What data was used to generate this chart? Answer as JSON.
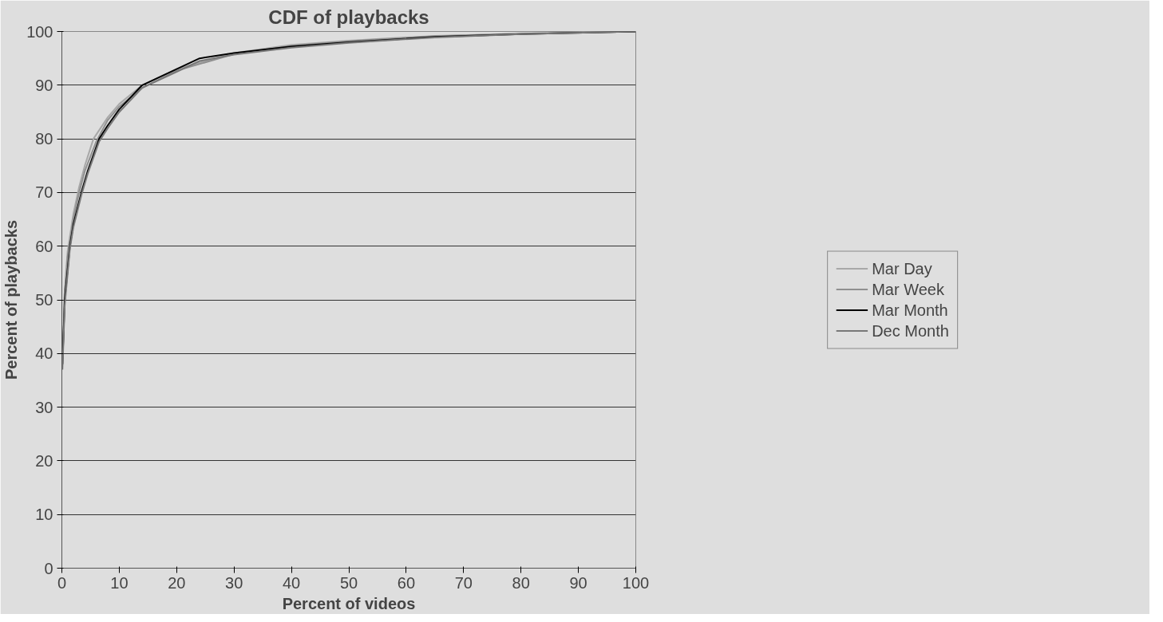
{
  "chart_data": {
    "type": "line",
    "title": "CDF of playbacks",
    "xlabel": "Percent of videos",
    "ylabel": "Percent of playbacks",
    "xlim": [
      0,
      100
    ],
    "xticks": [
      0,
      10,
      20,
      30,
      40,
      50,
      60,
      70,
      80,
      90,
      100
    ],
    "ylim": [
      0,
      100
    ],
    "yticks": [
      0,
      10,
      20,
      30,
      40,
      50,
      60,
      70,
      80,
      90,
      100
    ],
    "grid": "y",
    "legend": "right",
    "marker": "none",
    "line_style": "solid",
    "series": [
      {
        "name": "Mar Day",
        "color": "#a8a8a8",
        "x": [
          0.1,
          0.5,
          1,
          2,
          3,
          4,
          5.5,
          8,
          10,
          14,
          20,
          30,
          40,
          50,
          65,
          80,
          100
        ],
        "values": [
          38,
          52,
          59,
          66,
          71,
          75,
          80,
          84,
          86.5,
          90,
          93,
          96,
          97.5,
          98.3,
          99.2,
          99.6,
          100
        ]
      },
      {
        "name": "Mar Week",
        "color": "#909090",
        "x": [
          0.1,
          0.5,
          1,
          2,
          3,
          4,
          6,
          8,
          10,
          14,
          20,
          30,
          40,
          50,
          65,
          80,
          100
        ],
        "values": [
          38,
          51,
          58,
          65,
          70,
          74,
          79.5,
          83.5,
          86,
          89.5,
          92.7,
          95.8,
          97.3,
          98.2,
          99.1,
          99.6,
          100
        ]
      },
      {
        "name": "Mar Month",
        "color": "#000000",
        "x": [
          0.1,
          0.5,
          1.4,
          2,
          3.4,
          4.5,
          6.5,
          8,
          10,
          14,
          20,
          24,
          30,
          40,
          50,
          65,
          80,
          100
        ],
        "values": [
          38,
          50,
          60,
          64,
          70,
          74,
          80,
          82.5,
          85.5,
          90,
          93,
          95,
          96,
          97.2,
          98,
          99,
          99.5,
          100
        ]
      },
      {
        "name": "Dec Month",
        "color": "#787878",
        "x": [
          0.1,
          0.5,
          1.4,
          2,
          3.4,
          4.5,
          6.5,
          8,
          10,
          14,
          20,
          24,
          30,
          40,
          50,
          65,
          80,
          100
        ],
        "values": [
          37,
          49,
          59.5,
          63.5,
          69.5,
          73.5,
          79.5,
          82,
          85,
          89.5,
          92.5,
          94.5,
          95.7,
          97,
          97.9,
          98.9,
          99.5,
          100
        ]
      }
    ]
  }
}
